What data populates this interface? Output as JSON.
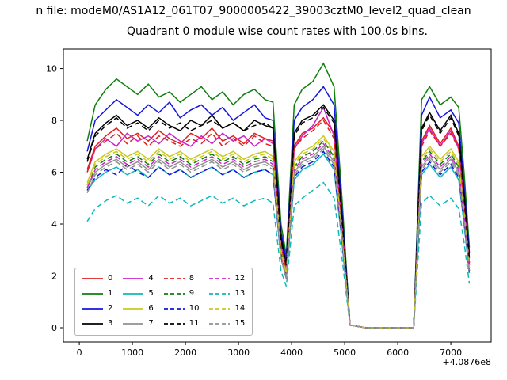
{
  "figure": {
    "suptitle": "n file: modeM0/AS1A12_061T07_9000005422_39003cztM0_level2_quad_clean",
    "axes_title": "Quadrant 0 module wise count rates with 100.0s bins.",
    "x_offset_label": "+4.0876e8"
  },
  "chart_data": {
    "type": "line",
    "title": "Quadrant 0 module wise count rates with 100.0s bins.",
    "xlabel": "",
    "ylabel": "",
    "x_offset_label": "+4.0876e8",
    "xlim": [
      -300,
      7760
    ],
    "ylim": [
      -0.55,
      10.75
    ],
    "xticks": [
      0,
      1000,
      2000,
      3000,
      4000,
      5000,
      6000,
      7000
    ],
    "yticks": [
      0,
      2,
      4,
      6,
      8,
      10
    ],
    "grid": false,
    "legend_position": "lower left",
    "legend_ncol": 4,
    "x": [
      150,
      300,
      500,
      700,
      900,
      1100,
      1300,
      1500,
      1700,
      1900,
      2100,
      2300,
      2500,
      2700,
      2900,
      3100,
      3300,
      3500,
      3650,
      3800,
      3900,
      4050,
      4200,
      4400,
      4600,
      4800,
      4950,
      5100,
      5400,
      5700,
      6000,
      6300,
      6450,
      6600,
      6800,
      7000,
      7150,
      7250,
      7350
    ],
    "series": [
      {
        "name": "0",
        "color": "#e02020",
        "dash": "solid",
        "values": [
          6.1,
          7.0,
          7.4,
          7.7,
          7.3,
          7.5,
          7.2,
          7.6,
          7.3,
          7.1,
          7.5,
          7.3,
          7.7,
          7.2,
          7.4,
          7.1,
          7.5,
          7.3,
          7.2,
          3.3,
          2.3,
          7.0,
          7.5,
          7.7,
          8.1,
          7.5,
          4.0,
          0.1,
          0,
          0,
          0,
          0,
          7.2,
          7.8,
          7.1,
          7.7,
          7.0,
          4.9,
          2.5
        ]
      },
      {
        "name": "1",
        "color": "#0e7e0e",
        "dash": "solid",
        "values": [
          7.2,
          8.6,
          9.2,
          9.6,
          9.3,
          9.0,
          9.4,
          8.9,
          9.1,
          8.7,
          9.0,
          9.3,
          8.8,
          9.1,
          8.6,
          9.0,
          9.2,
          8.8,
          8.7,
          4.0,
          2.8,
          8.6,
          9.2,
          9.5,
          10.2,
          9.3,
          5.0,
          0.1,
          0,
          0,
          0,
          0,
          8.8,
          9.3,
          8.6,
          8.9,
          8.5,
          6.0,
          3.1
        ]
      },
      {
        "name": "2",
        "color": "#1414e0",
        "dash": "solid",
        "values": [
          6.8,
          8.0,
          8.4,
          8.8,
          8.5,
          8.2,
          8.6,
          8.3,
          8.7,
          8.1,
          8.4,
          8.6,
          8.2,
          8.5,
          8.0,
          8.3,
          8.6,
          8.1,
          8.0,
          3.7,
          2.6,
          8.0,
          8.5,
          8.8,
          9.3,
          8.6,
          4.6,
          0.1,
          0,
          0,
          0,
          0,
          8.2,
          8.9,
          8.1,
          8.4,
          7.9,
          5.5,
          2.9
        ]
      },
      {
        "name": "3",
        "color": "#000000",
        "dash": "solid",
        "values": [
          6.5,
          7.5,
          7.9,
          8.2,
          7.8,
          8.0,
          7.7,
          8.1,
          7.8,
          7.6,
          8.0,
          7.8,
          8.2,
          7.7,
          7.9,
          7.6,
          8.0,
          7.8,
          7.7,
          3.5,
          2.4,
          7.5,
          8.0,
          8.2,
          8.6,
          8.0,
          4.3,
          0.1,
          0,
          0,
          0,
          0,
          7.7,
          8.3,
          7.6,
          8.2,
          7.5,
          5.2,
          2.7
        ]
      },
      {
        "name": "4",
        "color": "#cc22cc",
        "dash": "solid",
        "values": [
          6.0,
          6.9,
          7.3,
          7.0,
          7.5,
          7.2,
          7.4,
          7.1,
          7.5,
          7.2,
          7.0,
          7.4,
          7.1,
          7.5,
          7.2,
          7.4,
          7.0,
          7.3,
          7.1,
          3.2,
          2.3,
          6.9,
          7.4,
          7.8,
          8.5,
          7.4,
          4.0,
          0.1,
          0,
          0,
          0,
          0,
          7.1,
          7.7,
          7.0,
          7.6,
          6.9,
          4.8,
          2.5
        ]
      },
      {
        "name": "5",
        "color": "#11b8b8",
        "dash": "solid",
        "values": [
          5.3,
          5.7,
          6.0,
          6.2,
          5.9,
          6.1,
          5.8,
          6.2,
          5.9,
          6.1,
          5.8,
          6.0,
          6.2,
          5.9,
          6.1,
          5.8,
          6.0,
          6.1,
          5.9,
          2.7,
          1.9,
          5.7,
          6.1,
          6.3,
          6.7,
          6.1,
          3.3,
          0.1,
          0,
          0,
          0,
          0,
          5.9,
          6.3,
          5.8,
          6.2,
          5.7,
          4.0,
          2.1
        ]
      },
      {
        "name": "6",
        "color": "#c9c920",
        "dash": "solid",
        "values": [
          5.6,
          6.4,
          6.7,
          6.9,
          6.6,
          6.8,
          6.5,
          6.9,
          6.6,
          6.8,
          6.5,
          6.7,
          6.9,
          6.6,
          6.8,
          6.5,
          6.7,
          6.8,
          6.6,
          3.0,
          2.1,
          6.4,
          6.8,
          7.0,
          7.4,
          6.8,
          3.7,
          0.1,
          0,
          0,
          0,
          0,
          6.6,
          7.0,
          6.5,
          6.9,
          6.4,
          4.5,
          2.3
        ]
      },
      {
        "name": "7",
        "color": "#909090",
        "dash": "solid",
        "values": [
          5.4,
          6.0,
          6.3,
          6.5,
          6.2,
          6.4,
          6.1,
          6.5,
          6.2,
          6.4,
          6.1,
          6.3,
          6.5,
          6.2,
          6.4,
          6.1,
          6.3,
          6.4,
          6.2,
          2.8,
          2.0,
          6.0,
          6.4,
          6.6,
          7.0,
          6.4,
          3.5,
          0.1,
          0,
          0,
          0,
          0,
          6.2,
          6.6,
          6.1,
          6.5,
          6.0,
          4.2,
          2.2
        ]
      },
      {
        "name": "8",
        "color": "#e02020",
        "dash": "dashed",
        "values": [
          6.0,
          6.9,
          7.2,
          7.5,
          7.1,
          7.4,
          7.0,
          7.4,
          7.2,
          7.0,
          7.3,
          7.1,
          7.5,
          7.0,
          7.3,
          7.0,
          7.4,
          7.1,
          7.0,
          3.2,
          2.2,
          6.9,
          7.3,
          7.6,
          8.0,
          7.3,
          3.9,
          0.1,
          0,
          0,
          0,
          0,
          7.0,
          7.6,
          7.0,
          7.5,
          6.9,
          4.8,
          2.4
        ]
      },
      {
        "name": "9",
        "color": "#0e7e0e",
        "dash": "dashed",
        "values": [
          5.5,
          6.2,
          6.5,
          6.7,
          6.4,
          6.6,
          6.3,
          6.7,
          6.4,
          6.6,
          6.3,
          6.5,
          6.7,
          6.4,
          6.6,
          6.3,
          6.5,
          6.6,
          6.4,
          2.9,
          2.0,
          6.2,
          6.6,
          6.8,
          7.2,
          6.6,
          3.6,
          0.1,
          0,
          0,
          0,
          0,
          6.4,
          6.8,
          6.3,
          6.7,
          6.2,
          4.4,
          2.2
        ]
      },
      {
        "name": "10",
        "color": "#1414e0",
        "dash": "dashed",
        "values": [
          5.3,
          5.8,
          6.1,
          5.9,
          6.3,
          6.0,
          5.8,
          6.2,
          5.9,
          6.1,
          5.8,
          6.0,
          6.2,
          5.9,
          6.1,
          5.8,
          6.0,
          6.1,
          5.9,
          2.7,
          1.9,
          5.8,
          6.2,
          6.4,
          6.8,
          6.2,
          3.4,
          0.1,
          0,
          0,
          0,
          0,
          6.0,
          6.4,
          5.9,
          6.3,
          5.8,
          4.1,
          2.1
        ]
      },
      {
        "name": "11",
        "color": "#000000",
        "dash": "dashed",
        "values": [
          6.4,
          7.4,
          7.8,
          8.1,
          7.7,
          7.9,
          7.6,
          8.0,
          7.7,
          7.9,
          7.6,
          7.8,
          8.0,
          7.7,
          7.9,
          7.6,
          7.8,
          7.9,
          7.7,
          3.4,
          2.4,
          7.4,
          7.9,
          8.1,
          8.5,
          7.9,
          4.2,
          0.1,
          0,
          0,
          0,
          0,
          7.6,
          8.2,
          7.5,
          8.1,
          7.4,
          5.1,
          2.6
        ]
      },
      {
        "name": "12",
        "color": "#cc22cc",
        "dash": "dashed",
        "values": [
          5.4,
          6.1,
          6.4,
          6.6,
          6.3,
          6.5,
          6.2,
          6.6,
          6.3,
          6.5,
          6.2,
          6.4,
          6.6,
          6.3,
          6.5,
          6.2,
          6.4,
          6.5,
          6.3,
          2.8,
          2.0,
          6.1,
          6.5,
          6.7,
          7.1,
          6.5,
          3.5,
          0.1,
          0,
          0,
          0,
          0,
          6.3,
          6.7,
          6.2,
          6.6,
          6.1,
          4.3,
          2.2
        ]
      },
      {
        "name": "13",
        "color": "#11b8b8",
        "dash": "dashed",
        "values": [
          4.1,
          4.6,
          4.9,
          5.1,
          4.8,
          5.0,
          4.7,
          5.1,
          4.8,
          5.0,
          4.7,
          4.9,
          5.1,
          4.8,
          5.0,
          4.7,
          4.9,
          5.0,
          4.8,
          2.2,
          1.6,
          4.7,
          5.0,
          5.3,
          5.6,
          5.0,
          2.7,
          0.1,
          0,
          0,
          0,
          0,
          4.8,
          5.1,
          4.7,
          5.0,
          4.6,
          3.3,
          1.7
        ]
      },
      {
        "name": "14",
        "color": "#c9c920",
        "dash": "dashed",
        "values": [
          5.5,
          6.3,
          6.6,
          6.8,
          6.5,
          6.7,
          6.4,
          6.8,
          6.5,
          6.7,
          6.4,
          6.6,
          6.8,
          6.5,
          6.7,
          6.4,
          6.6,
          6.7,
          6.5,
          2.9,
          2.1,
          6.3,
          6.7,
          6.9,
          7.3,
          6.7,
          3.6,
          0.1,
          0,
          0,
          0,
          0,
          6.5,
          6.9,
          6.4,
          6.8,
          6.3,
          4.4,
          2.3
        ]
      },
      {
        "name": "15",
        "color": "#909090",
        "dash": "dashed",
        "values": [
          5.2,
          5.9,
          6.2,
          6.4,
          6.1,
          6.3,
          6.0,
          6.4,
          6.1,
          6.3,
          6.0,
          6.2,
          6.4,
          6.1,
          6.3,
          6.0,
          6.2,
          6.3,
          6.1,
          2.7,
          1.9,
          5.9,
          6.3,
          6.5,
          6.9,
          6.3,
          3.4,
          0.1,
          0,
          0,
          0,
          0,
          6.1,
          6.5,
          6.0,
          6.4,
          5.9,
          4.2,
          2.1
        ]
      }
    ]
  }
}
